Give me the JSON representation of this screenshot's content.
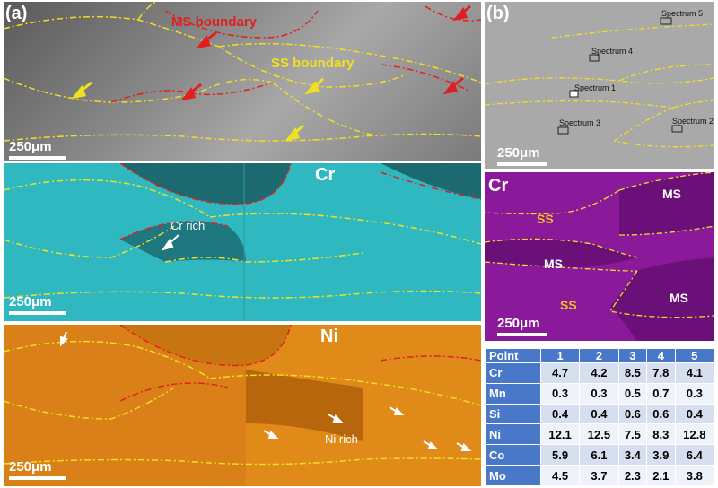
{
  "panel_a": {
    "label": "(a)",
    "se_image": {
      "ms_boundary_label": "MS boundary",
      "ss_boundary_label": "SS boundary",
      "scale_bar": "250μm"
    },
    "cr_map": {
      "element": "Cr",
      "annotation": "Cr rich",
      "scale_bar": "250μm"
    },
    "ni_map": {
      "element": "Ni",
      "annotation": "Ni rich",
      "scale_bar": "250μm"
    }
  },
  "panel_b": {
    "label": "(b)",
    "se_image": {
      "spectra": [
        "Spectrum 5",
        "Spectrum 4",
        "Spectrum 1",
        "Spectrum 3",
        "Spectrum 2"
      ],
      "scale_bar": "250μm"
    },
    "cr_map": {
      "element": "Cr",
      "regions": [
        "MS",
        "SS",
        "MS",
        "SS",
        "MS"
      ],
      "scale_bar": "250μm"
    }
  },
  "table": {
    "header": [
      "Point",
      "1",
      "2",
      "3",
      "4",
      "5"
    ],
    "rows": [
      {
        "element": "Cr",
        "values": [
          "4.7",
          "4.2",
          "8.5",
          "7.8",
          "4.1"
        ]
      },
      {
        "element": "Mn",
        "values": [
          "0.3",
          "0.3",
          "0.5",
          "0.7",
          "0.3"
        ]
      },
      {
        "element": "Si",
        "values": [
          "0.4",
          "0.4",
          "0.6",
          "0.6",
          "0.4"
        ]
      },
      {
        "element": "Ni",
        "values": [
          "12.1",
          "12.5",
          "7.5",
          "8.3",
          "12.8"
        ]
      },
      {
        "element": "Co",
        "values": [
          "5.9",
          "6.1",
          "3.4",
          "3.9",
          "6.4"
        ]
      },
      {
        "element": "Mo",
        "values": [
          "4.5",
          "3.7",
          "2.3",
          "2.1",
          "3.8"
        ]
      }
    ]
  },
  "colors": {
    "ms_boundary": "#e02020",
    "ss_boundary": "#f0e020",
    "cr_map": "#2fb8c0",
    "ni_map": "#e08a1a",
    "cr_map_b": "#8a1a9a",
    "table_header": "#4a78c8"
  }
}
